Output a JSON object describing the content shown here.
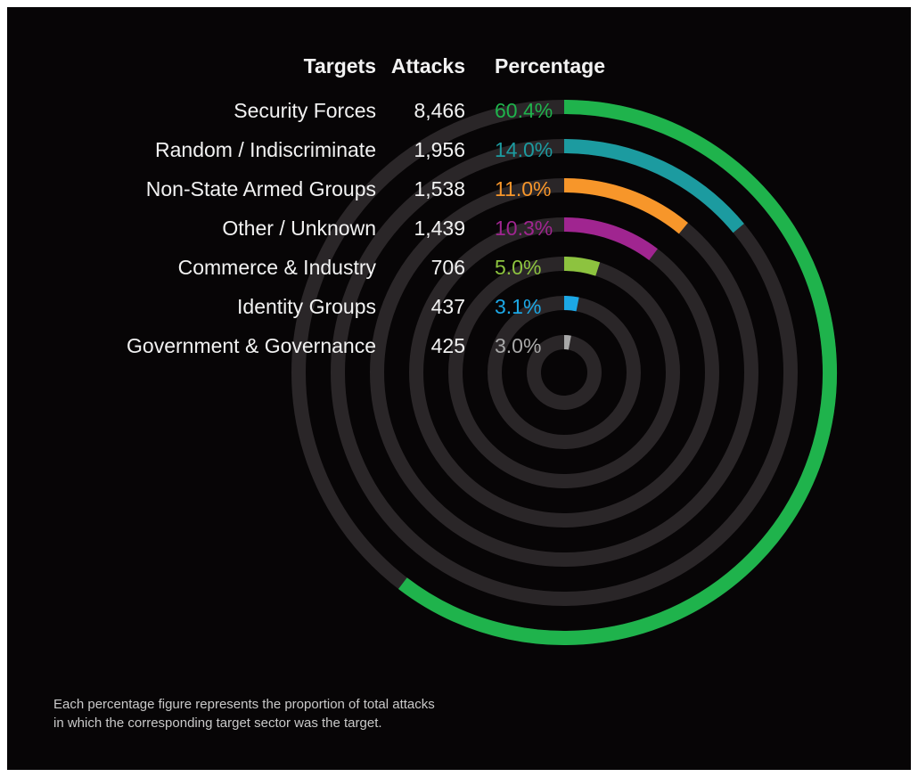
{
  "colors": {
    "background": "#070506",
    "track": "#2a2628",
    "text": "#f2f2f2"
  },
  "headers": {
    "targets": "Targets",
    "attacks": "Attacks",
    "percentage": "Percentage"
  },
  "chart_data": {
    "type": "radial-bar",
    "title": "",
    "columns": [
      "Targets",
      "Attacks",
      "Percentage"
    ],
    "max_percent": 100,
    "categories": [
      "Security Forces",
      "Random / Indiscriminate",
      "Non-State Armed Groups",
      "Other / Unknown",
      "Commerce & Industry",
      "Identity Groups",
      "Government & Governance"
    ],
    "attacks": [
      8466,
      1956,
      1538,
      1439,
      706,
      437,
      425
    ],
    "percentages": [
      60.4,
      14.0,
      11.0,
      10.3,
      5.0,
      3.1,
      3.0
    ],
    "rows": [
      {
        "target": "Security Forces",
        "attacks": "8,466",
        "percentage": "60.4%",
        "value": 60.4,
        "color": "#1fb34c"
      },
      {
        "target": "Random / Indiscriminate",
        "attacks": "1,956",
        "percentage": "14.0%",
        "value": 14.0,
        "color": "#1c9ba0"
      },
      {
        "target": "Non-State Armed Groups",
        "attacks": "1,538",
        "percentage": "11.0%",
        "value": 11.0,
        "color": "#f7962a"
      },
      {
        "target": "Other / Unknown",
        "attacks": "1,439",
        "percentage": "10.3%",
        "value": 10.3,
        "color": "#a02590"
      },
      {
        "target": "Commerce & Industry",
        "attacks": "706",
        "percentage": "5.0%",
        "value": 5.0,
        "color": "#8dc33f"
      },
      {
        "target": "Identity Groups",
        "attacks": "437",
        "percentage": "3.1%",
        "value": 3.1,
        "color": "#1ca8e6"
      },
      {
        "target": "Government & Governance",
        "attacks": "425",
        "percentage": "3.0%",
        "value": 3.0,
        "color": "#a8a8a8"
      }
    ]
  },
  "note": {
    "line1": "Each percentage figure represents the proportion of total attacks",
    "line2": "in which the corresponding target sector was the target."
  }
}
